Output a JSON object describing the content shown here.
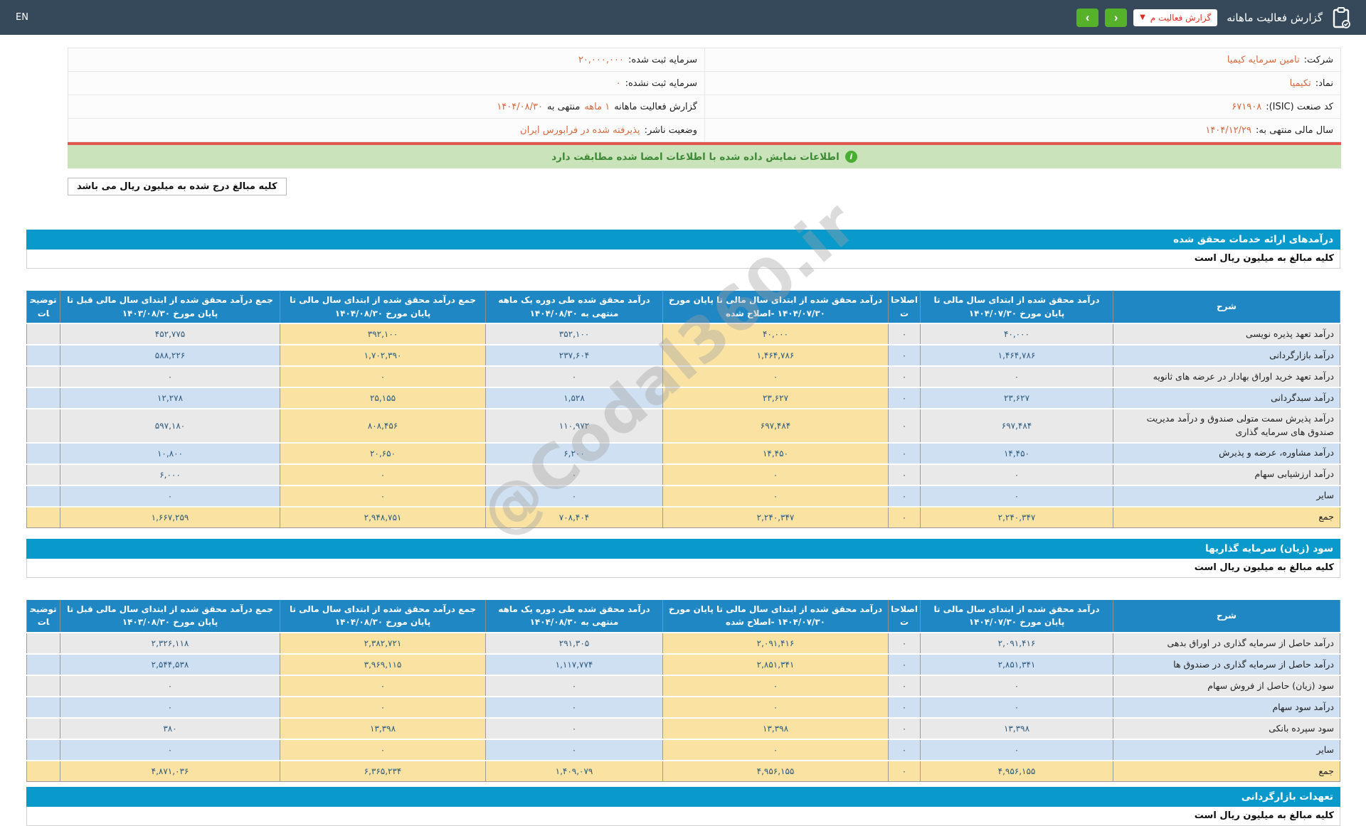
{
  "topbar": {
    "en": "EN",
    "title": "گزارش فعالیت ماهانه",
    "report_select": "گزارش فعالیت م",
    "caret": "▼",
    "prev_label": "‹",
    "next_label": "›"
  },
  "company": {
    "sherkat_label": "شرکت:",
    "sherkat": "تامین سرمایه کیمیا",
    "namad_label": "نماد:",
    "namad": "تکیمیا",
    "isic_label": "کد صنعت (ISIC):",
    "isic": "۶۷۱۹۰۸",
    "fiscal_label": "سال مالی منتهی به:",
    "fiscal": "۱۴۰۴/۱۲/۲۹",
    "cap_reg_label": "سرمایه ثبت شده:",
    "cap_reg": "۲۰,۰۰۰,۰۰۰",
    "cap_unreg_label": "سرمایه ثبت نشده:",
    "cap_unreg": "۰",
    "report_p1": "گزارش فعالیت ماهانه",
    "report_p2": "۱ ماهه",
    "report_p3": "منتهی به",
    "report_p4": "۱۴۰۴/۰۸/۳۰",
    "status_label": "وضعیت ناشر:",
    "status": "پذیرفته شده در فرابورس ایران"
  },
  "banner": {
    "text": "اطلاعات نمایش داده شده با اطلاعات امضا شده مطابقت دارد",
    "icon": "i"
  },
  "notes": {
    "box": "کلیه مبالغ درج شده به میلیون ریال می باشد",
    "unit": "کلیه مبالغ به میلیون ریال است"
  },
  "watermark": "@Codal360.ir",
  "colors": {
    "topbar": "#36495a",
    "nav_green": "#55b22a",
    "select_red": "#dc2f23",
    "section_bar": "#0a99cb",
    "table_header": "#1f87c3",
    "row_gray": "#e9e9e9",
    "row_blue": "#cfe0f2",
    "highlight_yellow": "#f9e2a2",
    "number_blue": "#2d5a7e",
    "value_orange": "#d2693e",
    "banner_green_bg": "#cbe3bb",
    "banner_green_text": "#3c8a35",
    "red_line": "#e2574d"
  },
  "sections": [
    {
      "title": "درآمدهای ارائه خدمات محقق شده",
      "table": {
        "headers": [
          "شرح",
          "درآمد محقق شده از ابتدای سال مالی تا پایان مورخ ۱۴۰۴/۰۷/۳۰",
          "اصلاحات",
          "درآمد محقق شده از ابتدای سال مالی تا پایان مورخ ۱۴۰۴/۰۷/۳۰ -اصلاح شده",
          "درآمد محقق شده طی دوره یک ماهه منتهی به ۱۴۰۴/۰۸/۳۰",
          "جمع درآمد محقق شده از ابتدای سال مالی تا پایان مورخ ۱۴۰۴/۰۸/۳۰",
          "جمع درآمد محقق شده از ابتدای سال مالی قبل تا پایان مورخ ۱۴۰۳/۰۸/۳۰",
          "توضیحات"
        ],
        "widths": [
          320,
          271,
          45,
          317,
          249,
          289,
          309,
          47
        ],
        "yellow_cols": [
          3,
          5
        ],
        "rows": [
          [
            "درآمد تعهد پذیره نویسی",
            "۴۰,۰۰۰",
            "۰",
            "۴۰,۰۰۰",
            "۳۵۲,۱۰۰",
            "۳۹۲,۱۰۰",
            "۴۵۲,۷۷۵",
            ""
          ],
          [
            "درآمد بازارگردانی",
            "۱,۴۶۴,۷۸۶",
            "۰",
            "۱,۴۶۴,۷۸۶",
            "۲۳۷,۶۰۴",
            "۱,۷۰۲,۳۹۰",
            "۵۸۸,۲۲۶",
            ""
          ],
          [
            "درآمد تعهد خرید اوراق بهادار در عرضه های ثانویه",
            "۰",
            "۰",
            "۰",
            "۰",
            "۰",
            "۰",
            ""
          ],
          [
            "درآمد سبدگردانی",
            "۲۳,۶۲۷",
            "۰",
            "۲۳,۶۲۷",
            "۱,۵۲۸",
            "۲۵,۱۵۵",
            "۱۲,۲۷۸",
            ""
          ],
          [
            "درآمد پذیرش سمت متولی صندوق و درآمد مدیریت صندوق های سرمایه گذاری",
            "۶۹۷,۴۸۴",
            "۰",
            "۶۹۷,۴۸۴",
            "۱۱۰,۹۷۲",
            "۸۰۸,۴۵۶",
            "۵۹۷,۱۸۰",
            ""
          ],
          [
            "درآمد مشاوره، عرضه و پذیرش",
            "۱۴,۴۵۰",
            "۰",
            "۱۴,۴۵۰",
            "۶,۲۰۰",
            "۲۰,۶۵۰",
            "۱۰,۸۰۰",
            ""
          ],
          [
            "درآمد ارزشیابی سهام",
            "۰",
            "۰",
            "۰",
            "۰",
            "۰",
            "۶,۰۰۰",
            ""
          ],
          [
            "سایر",
            "۰",
            "۰",
            "۰",
            "۰",
            "۰",
            "۰",
            ""
          ]
        ],
        "total": [
          "جمع",
          "۲,۲۴۰,۳۴۷",
          "۰",
          "۲,۲۴۰,۳۴۷",
          "۷۰۸,۴۰۴",
          "۲,۹۴۸,۷۵۱",
          "۱,۶۶۷,۲۵۹",
          ""
        ]
      }
    },
    {
      "title": "سود (زیان) سرمایه گذاریها",
      "table": {
        "headers": [
          "شرح",
          "درآمد محقق شده از ابتدای سال مالی تا پایان مورخ ۱۴۰۴/۰۷/۳۰",
          "اصلاحات",
          "درآمد محقق شده از ابتدای سال مالی تا پایان مورخ ۱۴۰۴/۰۷/۳۰ -اصلاح شده",
          "درآمد محقق شده طی دوره یک ماهه منتهی به ۱۴۰۴/۰۸/۳۰",
          "جمع درآمد محقق شده از ابتدای سال مالی تا پایان مورخ ۱۴۰۴/۰۸/۳۰",
          "جمع درآمد محقق شده از ابتدای سال مالی قبل تا پایان مورخ ۱۴۰۳/۰۸/۳۰",
          "توضیحات"
        ],
        "widths": [
          320,
          271,
          45,
          317,
          249,
          289,
          309,
          47
        ],
        "yellow_cols": [
          3,
          5
        ],
        "rows": [
          [
            "درآمد حاصل از سرمایه گذاری در اوراق بدهی",
            "۲,۰۹۱,۴۱۶",
            "۰",
            "۲,۰۹۱,۴۱۶",
            "۲۹۱,۳۰۵",
            "۲,۳۸۲,۷۲۱",
            "۲,۳۲۶,۱۱۸",
            ""
          ],
          [
            "درآمد حاصل از سرمایه گذاری در صندوق ها",
            "۲,۸۵۱,۳۴۱",
            "۰",
            "۲,۸۵۱,۳۴۱",
            "۱,۱۱۷,۷۷۴",
            "۳,۹۶۹,۱۱۵",
            "۲,۵۴۴,۵۳۸",
            ""
          ],
          [
            "سود (زیان) حاصل از فروش سهام",
            "۰",
            "۰",
            "۰",
            "۰",
            "۰",
            "۰",
            ""
          ],
          [
            "درآمد سود سهام",
            "۰",
            "۰",
            "۰",
            "۰",
            "۰",
            "۰",
            ""
          ],
          [
            "سود سپرده بانکی",
            "۱۳,۳۹۸",
            "۰",
            "۱۳,۳۹۸",
            "۰",
            "۱۳,۳۹۸",
            "۳۸۰",
            ""
          ],
          [
            "سایر",
            "۰",
            "۰",
            "۰",
            "۰",
            "۰",
            "۰",
            ""
          ]
        ],
        "total": [
          "جمع",
          "۴,۹۵۶,۱۵۵",
          "۰",
          "۴,۹۵۶,۱۵۵",
          "۱,۴۰۹,۰۷۹",
          "۶,۳۶۵,۲۳۴",
          "۴,۸۷۱,۰۳۶",
          ""
        ]
      }
    },
    {
      "title": "تعهدات بازارگردانی"
    }
  ]
}
